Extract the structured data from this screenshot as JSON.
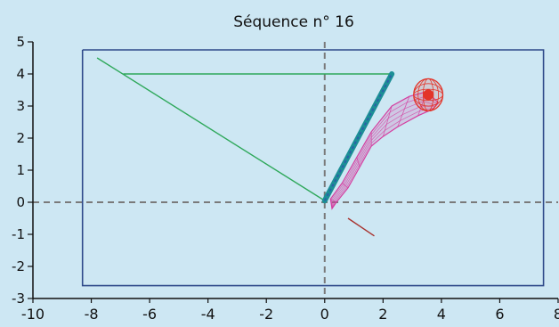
{
  "chart_data": {
    "type": "line",
    "title": "Séquence n° 16",
    "xlabel": "",
    "ylabel": "",
    "xlim": [
      -10,
      8
    ],
    "ylim": [
      -3,
      5
    ],
    "grid": false,
    "x_ticks": [
      -10,
      -8,
      -6,
      -4,
      -2,
      0,
      2,
      4,
      6,
      8
    ],
    "y_ticks": [
      -3,
      -2,
      -1,
      0,
      1,
      2,
      3,
      4,
      5
    ],
    "x_tick_labels": [
      "-10",
      "-8",
      "-6",
      "-4",
      "-2",
      "0",
      "2",
      "4",
      "6",
      "8"
    ],
    "y_tick_labels": [
      "-3",
      "-2",
      "-1",
      "0",
      "1",
      "2",
      "3",
      "4",
      "5"
    ],
    "reference_lines": {
      "x": 0,
      "y": 0,
      "style": "dashed",
      "color": "#7a7a7a"
    },
    "series": [
      {
        "kind": "rectangle",
        "color": "#2f4a8a",
        "x": [
          -8.3,
          7.5,
          7.5,
          -8.3,
          -8.3
        ],
        "y": [
          4.75,
          4.75,
          -2.6,
          -2.6,
          4.75
        ]
      },
      {
        "kind": "line",
        "color": "#2ea85a",
        "x": [
          -7.8,
          0.0,
          2.3,
          -6.9
        ],
        "y": [
          4.5,
          0.05,
          4.0,
          4.0
        ]
      },
      {
        "kind": "band",
        "color": "#1c8f96",
        "x": [
          0.0,
          2.3
        ],
        "y": [
          0.05,
          4.0
        ]
      },
      {
        "kind": "mesh",
        "color": "#d43fa0",
        "x": [
          0.25,
          0.2,
          0.6,
          1.1,
          1.6,
          2.3,
          2.9,
          3.5,
          3.9,
          3.7,
          3.2,
          2.5,
          2.0,
          1.6,
          1.2,
          0.8,
          0.4,
          0.25
        ],
        "y": [
          -0.2,
          0.1,
          0.6,
          1.4,
          2.2,
          3.0,
          3.3,
          3.45,
          3.1,
          2.9,
          2.7,
          2.35,
          2.05,
          1.75,
          1.1,
          0.45,
          0.0,
          -0.2
        ]
      },
      {
        "kind": "sphere",
        "color": "#e3352a",
        "x": [
          3.55
        ],
        "y": [
          3.35
        ],
        "r": 0.5
      },
      {
        "kind": "line",
        "color": "#a8322e",
        "x": [
          0.8,
          1.7
        ],
        "y": [
          -0.5,
          -1.05
        ]
      }
    ]
  }
}
